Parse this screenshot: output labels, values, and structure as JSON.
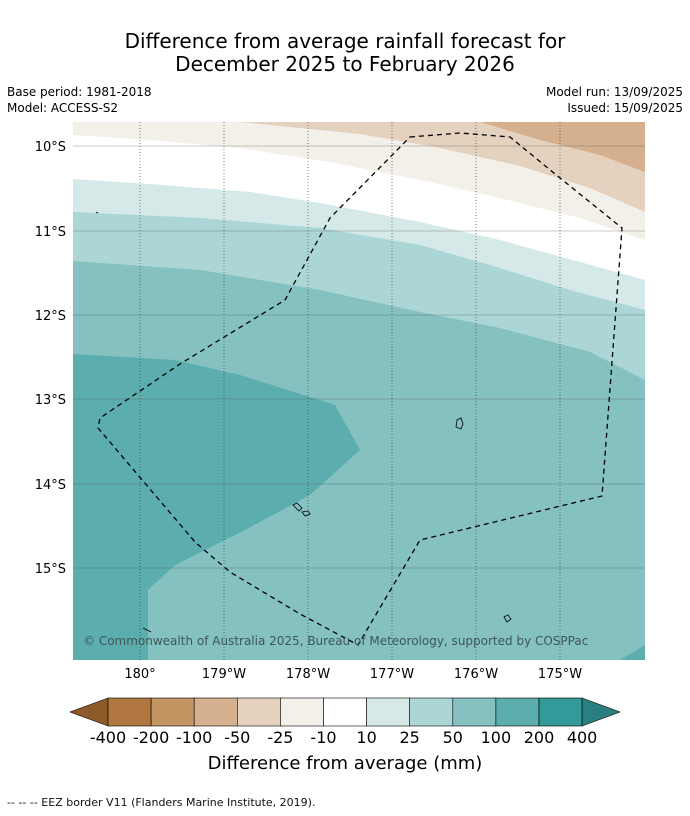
{
  "title": {
    "line1": "Difference from average rainfall forecast for",
    "line2": "December 2025 to February 2026"
  },
  "meta": {
    "base_period": "Base period: 1981-2018",
    "model": "Model: ACCESS-S2",
    "model_run": "Model run: 13/09/2025",
    "issued": "Issued: 15/09/2025"
  },
  "map": {
    "lat_labels": [
      "10°S",
      "11°S",
      "12°S",
      "13°S",
      "14°S",
      "15°S"
    ],
    "lon_labels": [
      "180°",
      "179°W",
      "178°W",
      "177°W",
      "176°W",
      "175°W"
    ],
    "copyright": "© Commonwealth of Australia 2025, Bureau of Meteorology, supported by COSPPac",
    "border_style": "dashed",
    "features": [
      "eez-border",
      "island-outlines"
    ]
  },
  "colorbar": {
    "title": "Difference from average (mm)",
    "labels": [
      "-400",
      "-200",
      "-100",
      "-50",
      "-25",
      "-10",
      "10",
      "25",
      "50",
      "100",
      "200",
      "400"
    ],
    "colors": [
      "#8f5a2a",
      "#b07840",
      "#c39362",
      "#d5b08f",
      "#e4d1be",
      "#f3efe9",
      "#ffffff",
      "#d5e9e9",
      "#acd5d5",
      "#84c1c0",
      "#5caeae",
      "#339a9a",
      "#2a7f80"
    ]
  },
  "footer": "--  --  -- EEZ border V11 (Flanders Marine Institute, 2019)."
}
